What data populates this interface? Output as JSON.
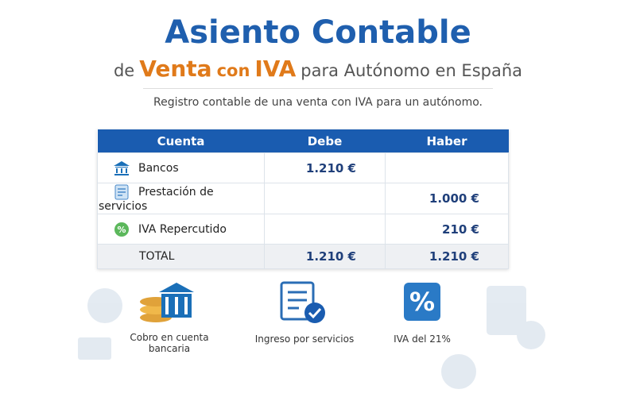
{
  "header": {
    "title": "Asiento Contable",
    "subtitle": [
      "de",
      "Venta",
      "con",
      "IVA",
      "para Autónomo en España"
    ],
    "description": "Registro contable de una venta con IVA para un autónomo."
  },
  "table": {
    "columns": [
      "Cuenta",
      "Debe",
      "Haber"
    ],
    "rows": [
      [
        "Bancos",
        "1.210 €",
        ""
      ],
      [
        "Prestación de servicios",
        "",
        "1.000 €"
      ],
      [
        "IVA Repercutido",
        "",
        "210 €"
      ]
    ],
    "total": [
      "TOTAL",
      "1.210 €",
      "1.210 €"
    ]
  },
  "icons": [
    {
      "label": "Cobro en cuenta bancaria"
    },
    {
      "label": "Ingreso por servicios"
    },
    {
      "label": "IVA del 21%"
    }
  ]
}
